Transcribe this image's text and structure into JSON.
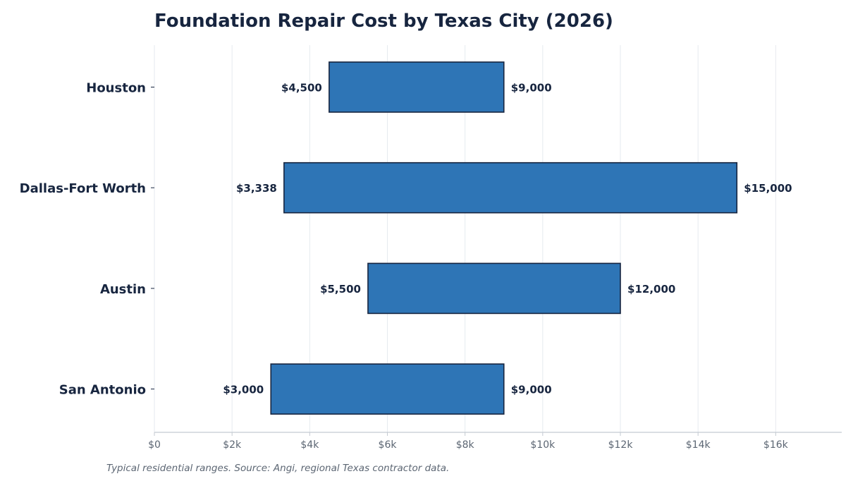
{
  "chart_data": {
    "type": "bar",
    "orientation": "horizontal",
    "variant": "floating-range",
    "title": "Foundation Repair Cost by Texas City (2026)",
    "xlabel": "",
    "ylabel": "",
    "categories": [
      "Houston",
      "Dallas-Fort Worth",
      "Austin",
      "San Antonio"
    ],
    "series": [
      {
        "low": [
          4500,
          3338,
          5500,
          3000
        ],
        "high": [
          9000,
          15000,
          12000,
          9000
        ],
        "low_labels": [
          "$4,500",
          "$3,338",
          "$5,500",
          "$3,000"
        ],
        "high_labels": [
          "$9,000",
          "$15,000",
          "$12,000",
          "$9,000"
        ]
      }
    ],
    "xlim": [
      0,
      17700
    ],
    "xticks": [
      0,
      2000,
      4000,
      6000,
      8000,
      10000,
      12000,
      14000,
      16000
    ],
    "xtick_labels": [
      "$0",
      "$2k",
      "$4k",
      "$6k",
      "$8k",
      "$10k",
      "$12k",
      "$14k",
      "$16k"
    ],
    "grid": "vertical",
    "legend": "none",
    "footnote": "Typical residential ranges. Source: Angi, regional Texas contractor data."
  },
  "colors": {
    "bar_fill": "#2e75b6",
    "bar_edge": "#17253f",
    "grid": "#e6eaef",
    "axis": "#c4cad2",
    "text_dark": "#17253f",
    "text_muted": "#5c6673"
  }
}
